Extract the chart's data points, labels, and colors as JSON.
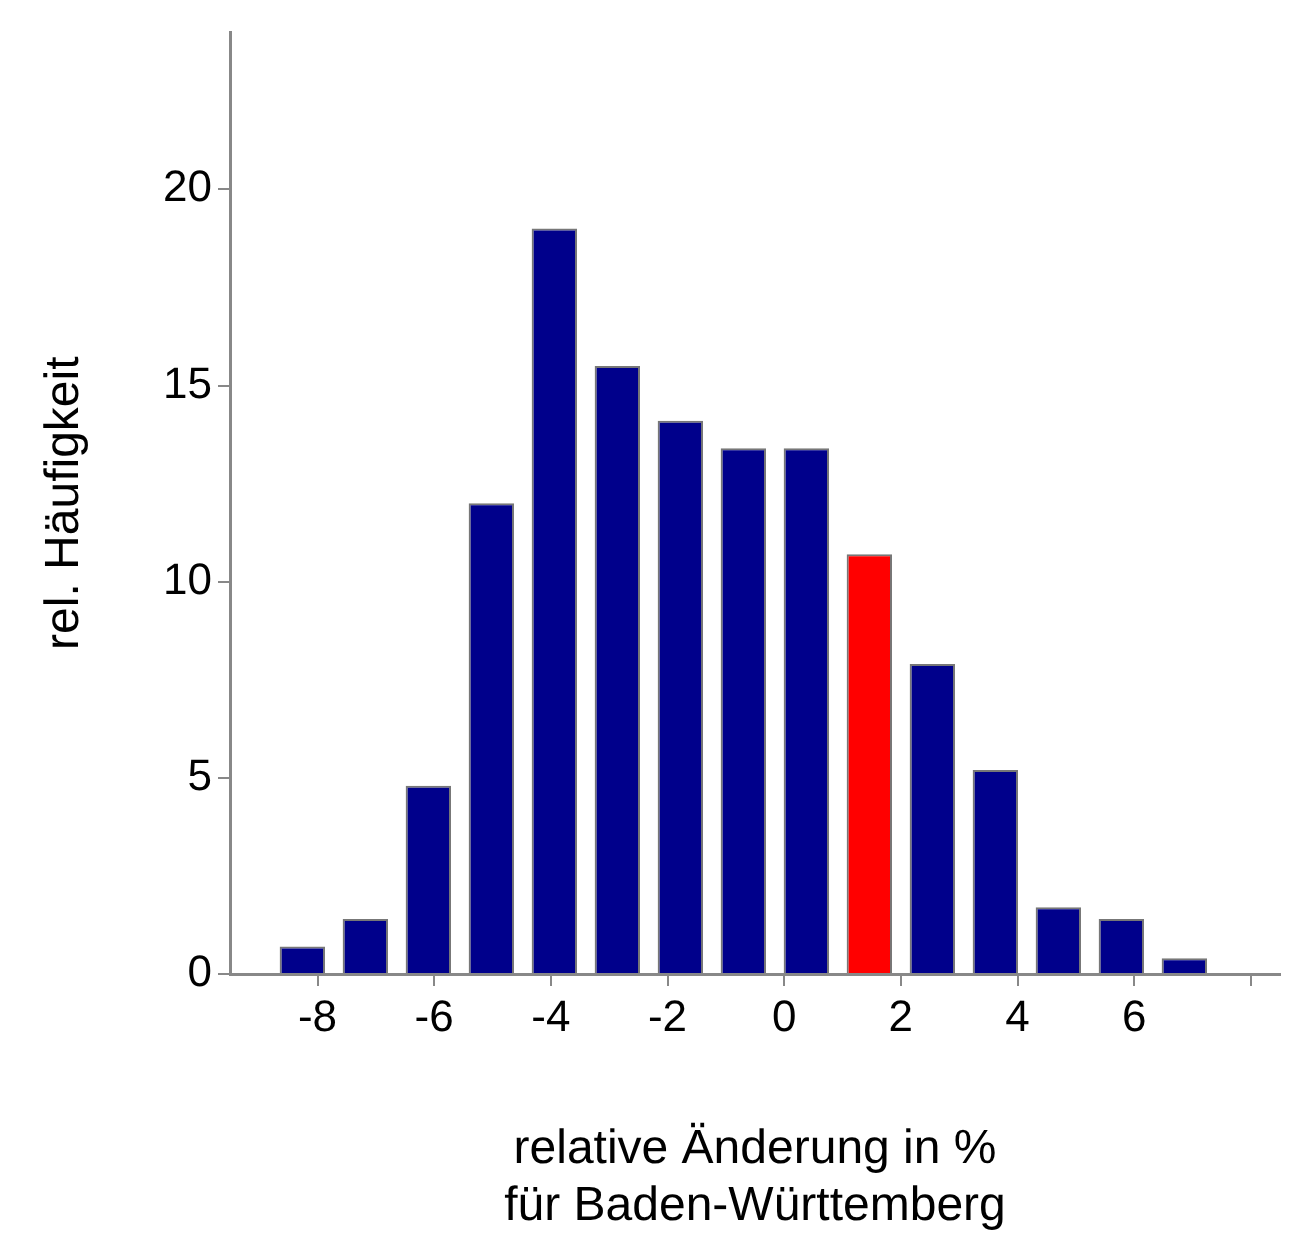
{
  "chart_data": {
    "type": "histogram",
    "xlabel": "relative Änderung in %\nfür Baden-Württemberg",
    "ylabel": "rel. Häufigkeit",
    "bins": [
      -8.8,
      -7.72,
      -6.64,
      -5.56,
      -4.48,
      -3.4,
      -2.32,
      -1.24,
      -0.16,
      0.92,
      2.0,
      3.08,
      4.16,
      5.24,
      6.32,
      7.4
    ],
    "values": [
      0.7,
      1.4,
      4.8,
      12.0,
      19.0,
      15.5,
      14.1,
      13.4,
      13.4,
      10.7,
      7.9,
      5.2,
      1.7,
      1.4,
      0.4
    ],
    "colors": [
      "#00008b",
      "#00008b",
      "#00008b",
      "#00008b",
      "#00008b",
      "#00008b",
      "#00008b",
      "#00008b",
      "#00008b",
      "#ff0000",
      "#00008b",
      "#00008b",
      "#00008b",
      "#00008b",
      "#00008b"
    ],
    "xlim": [
      -9.5,
      8.5
    ],
    "xticks": [
      -8,
      -6,
      -4,
      -2,
      0,
      2,
      4,
      6,
      {
        "value": 8,
        "label": null
      }
    ],
    "ylim": [
      0,
      24
    ],
    "yticks": [
      0,
      5,
      10,
      15,
      20
    ],
    "grid": false
  }
}
